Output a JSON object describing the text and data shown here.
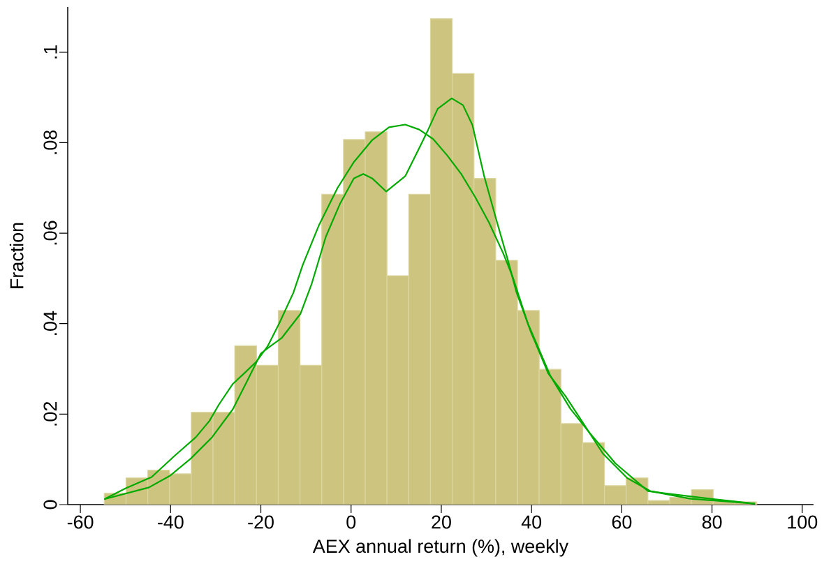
{
  "chart_data": {
    "type": "histogram",
    "xlabel": "AEX annual return (%), weekly",
    "ylabel": "Fraction",
    "bins": [
      -54.7,
      -49.88,
      -45.06,
      -40.24,
      -35.42,
      -30.6,
      -25.78,
      -20.96,
      -16.14,
      -11.32,
      -6.5,
      -1.68,
      3.14,
      7.96,
      12.78,
      17.6,
      22.42,
      27.24,
      32.06,
      36.88,
      41.7,
      46.52,
      51.34,
      56.16,
      60.98,
      65.8,
      70.62,
      75.44,
      80.26,
      85.08,
      89.9
    ],
    "values": [
      0.0025,
      0.0059,
      0.0076,
      0.0068,
      0.0204,
      0.0204,
      0.0351,
      0.0308,
      0.0429,
      0.0308,
      0.0686,
      0.0807,
      0.0824,
      0.0506,
      0.0686,
      0.1074,
      0.0953,
      0.0721,
      0.054,
      0.0429,
      0.0299,
      0.0179,
      0.0137,
      0.0042,
      0.0059,
      0.0009,
      0.0016,
      0.0033,
      0.0008,
      0.0006
    ],
    "color": "#cdc47f",
    "series": [
      {
        "type": "line",
        "color": "#00aa00",
        "x": [
          -54.7,
          -50.0,
          -44.2,
          -39.1,
          -34.4,
          -31.4,
          -29.3,
          -26.2,
          -23.6,
          -21.0,
          -18.5,
          -15.9,
          -12.8,
          -10.7,
          -7.1,
          -3.0,
          0.6,
          4.7,
          8.4,
          12.0,
          15.1,
          18.2,
          21.3,
          24.4,
          27.5,
          30.6,
          33.7,
          35.8,
          39.2,
          44.2,
          48.6,
          53.0,
          58.6,
          65.8,
          69.6,
          79.6,
          89.5
        ],
        "values": [
          0.0012,
          0.0036,
          0.0061,
          0.0108,
          0.0149,
          0.0185,
          0.0221,
          0.0267,
          0.0291,
          0.0316,
          0.035,
          0.0401,
          0.0468,
          0.053,
          0.0618,
          0.07,
          0.0757,
          0.0806,
          0.0834,
          0.084,
          0.0829,
          0.0808,
          0.0772,
          0.0731,
          0.068,
          0.0623,
          0.0556,
          0.0504,
          0.04,
          0.0284,
          0.0212,
          0.0157,
          0.0091,
          0.003,
          0.0025,
          0.0013,
          0.0002
        ]
      },
      {
        "type": "line",
        "color": "#00aa00",
        "x": [
          -54.7,
          -44.8,
          -40.1,
          -35.5,
          -30.8,
          -26.2,
          -23.1,
          -20.0,
          -17.9,
          -15.4,
          -11.2,
          -8.7,
          -5.6,
          -2.5,
          0.6,
          2.7,
          4.7,
          7.8,
          12.0,
          15.1,
          17.1,
          19.2,
          22.3,
          24.8,
          26.9,
          29.5,
          32.1,
          34.6,
          36.7,
          39.8,
          43.7,
          47.5,
          50.8,
          55.8,
          61.3,
          66.3,
          75.2,
          89.5
        ],
        "values": [
          0.0012,
          0.0038,
          0.0064,
          0.0102,
          0.0149,
          0.0211,
          0.0272,
          0.0334,
          0.035,
          0.0368,
          0.0422,
          0.0489,
          0.0592,
          0.0664,
          0.0721,
          0.0731,
          0.0721,
          0.0692,
          0.0726,
          0.0788,
          0.0829,
          0.0875,
          0.0898,
          0.0883,
          0.0839,
          0.0726,
          0.0633,
          0.0546,
          0.0468,
          0.0383,
          0.029,
          0.024,
          0.019,
          0.0113,
          0.0058,
          0.003,
          0.0013,
          0.0002
        ]
      }
    ],
    "xlim": [
      -62.8,
      102.5
    ],
    "ylim": [
      0,
      0.11
    ],
    "xticks": [
      -60,
      -40,
      -20,
      0,
      20,
      40,
      60,
      80,
      100
    ],
    "yticks": [
      0,
      {
        "value": 0.02,
        "label": ".02"
      },
      {
        "value": 0.04,
        "label": ".04"
      },
      {
        "value": 0.06,
        "label": ".06"
      },
      {
        "value": 0.08,
        "label": ".08"
      },
      {
        "value": 0.1,
        "label": ".1"
      }
    ]
  }
}
